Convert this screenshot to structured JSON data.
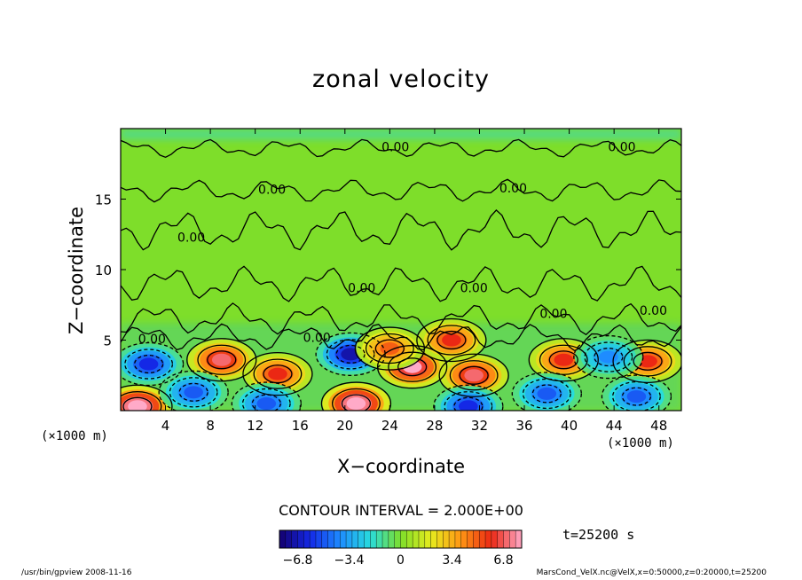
{
  "chart_data": {
    "type": "heatmap",
    "title": "zonal velocity",
    "xlabel": "X−coordinate",
    "ylabel": "Z−coordinate",
    "x_unit_left": "(×1000 m)",
    "x_unit_right": "(×1000 m)",
    "xlim": [
      0,
      50
    ],
    "ylim": [
      0,
      20
    ],
    "x_ticks": [
      4,
      8,
      12,
      16,
      20,
      24,
      28,
      32,
      36,
      40,
      44,
      48
    ],
    "y_ticks": [
      5,
      10,
      15
    ],
    "contour_interval_text": "CONTOUR INTERVAL = 2.000E+00",
    "contour_label": "0.00",
    "colorbar": {
      "min": -8,
      "max": 8,
      "tick_labels": [
        "−6.8",
        "−3.4",
        "0",
        "3.4",
        "6.8"
      ],
      "tick_values": [
        -6.8,
        -3.4,
        0,
        3.4,
        6.8
      ]
    },
    "time_label": "t=25200 s",
    "blobs": [
      {
        "x": 1.5,
        "z": 0.3,
        "u": 9
      },
      {
        "x": 2.5,
        "z": 3.3,
        "u": -6
      },
      {
        "x": 9,
        "z": 3.6,
        "u": 7
      },
      {
        "x": 14,
        "z": 2.6,
        "u": 6
      },
      {
        "x": 6.5,
        "z": 1.3,
        "u": -5
      },
      {
        "x": 13,
        "z": 0.5,
        "u": -5
      },
      {
        "x": 20.5,
        "z": 4.0,
        "u": -7
      },
      {
        "x": 21,
        "z": 0.5,
        "u": 9
      },
      {
        "x": 26,
        "z": 3.1,
        "u": 8
      },
      {
        "x": 24,
        "z": 4.4,
        "u": 5
      },
      {
        "x": 31.5,
        "z": 2.5,
        "u": 7
      },
      {
        "x": 31,
        "z": 0.3,
        "u": -6
      },
      {
        "x": 29.5,
        "z": 5.0,
        "u": 6
      },
      {
        "x": 39.5,
        "z": 3.6,
        "u": 6
      },
      {
        "x": 38,
        "z": 1.2,
        "u": -5
      },
      {
        "x": 47,
        "z": 3.5,
        "u": 6
      },
      {
        "x": 46,
        "z": 1.0,
        "u": -5
      },
      {
        "x": 43.5,
        "z": 3.8,
        "u": -4
      }
    ]
  },
  "footer": {
    "left": "/usr/bin/gpview   2008-11-16",
    "right": "MarsCond_VelX.nc@VelX,x=0:50000,z=0:20000,t=25200"
  },
  "colors": {
    "background": "#ffffff",
    "field_background": "#7ede2a"
  }
}
